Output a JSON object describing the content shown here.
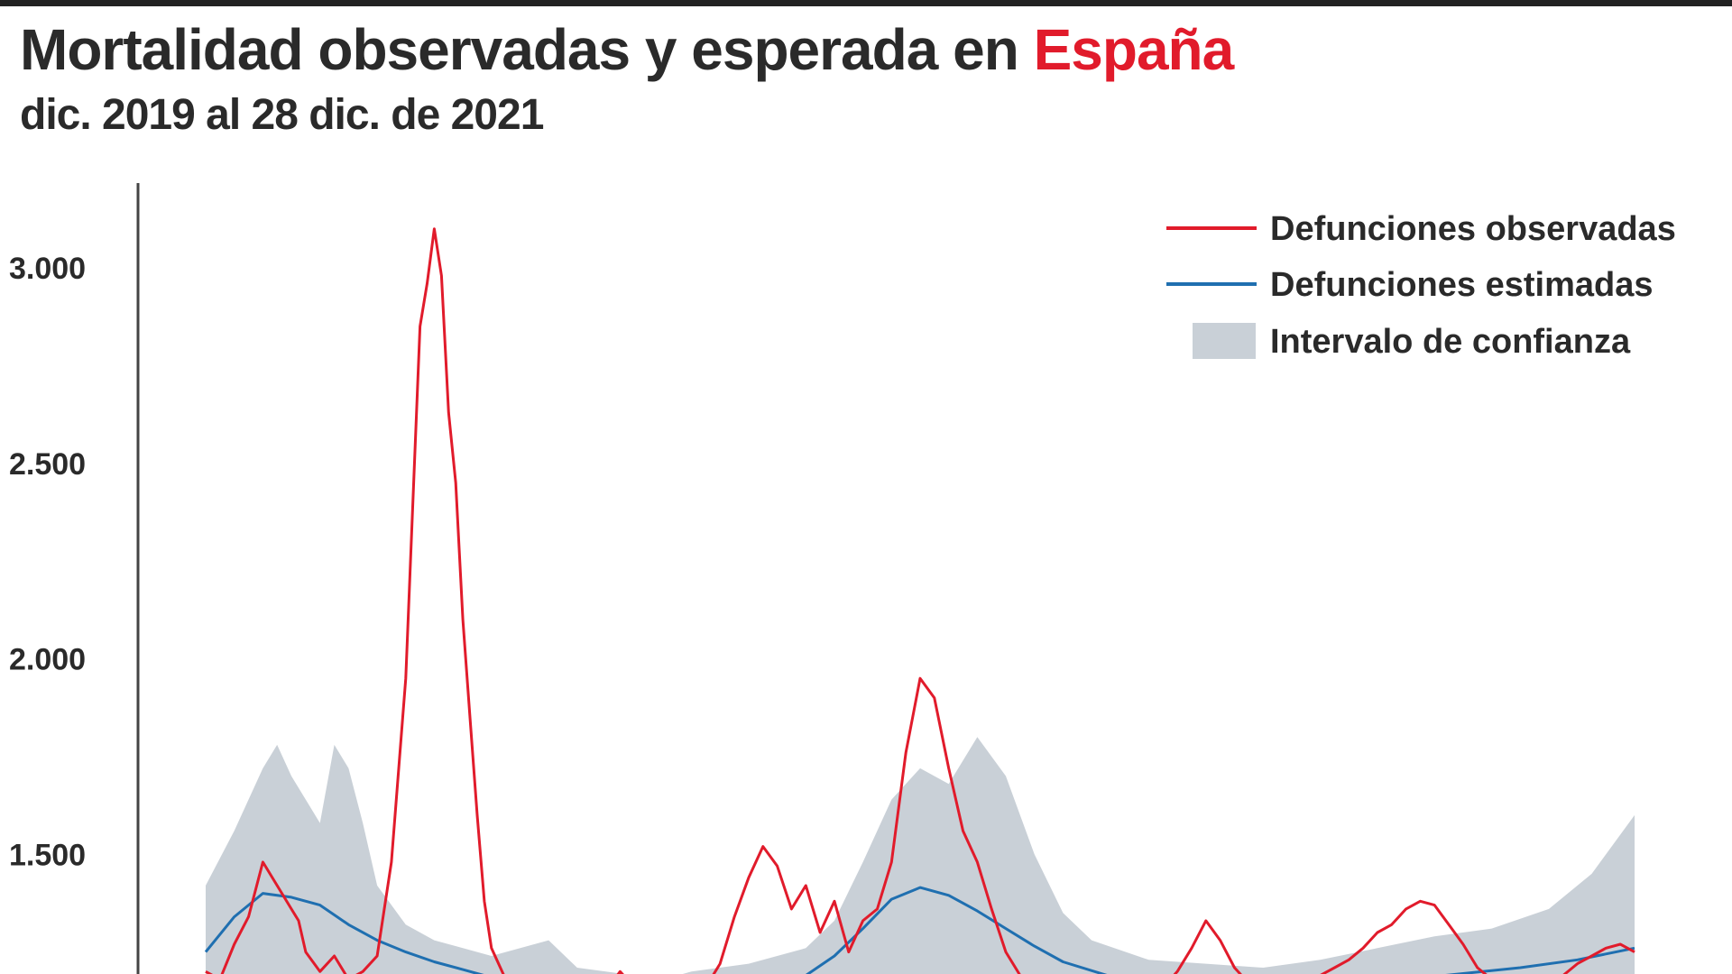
{
  "header": {
    "title_main": "Mortalidad observadas y esperada en ",
    "title_accent": "España",
    "subtitle": "dic. 2019 al 28 dic. de 2021"
  },
  "colors": {
    "observed": "#e11b2b",
    "estimated": "#1f6fb0",
    "confidence": "#c9d0d7",
    "axis": "#444444",
    "text": "#2a2a2a"
  },
  "chart_data": {
    "type": "line",
    "title": "Mortalidad observadas y esperada en España",
    "subtitle": "dic. 2019 al 28 dic. de 2021",
    "xlabel": "",
    "ylabel": "",
    "x_range": [
      "2019-12",
      "2021-12-28"
    ],
    "ylim_visible": [
      1250,
      3200
    ],
    "yticks": [
      {
        "value": 1500,
        "label": "1.500"
      },
      {
        "value": 2000,
        "label": "2.000"
      },
      {
        "value": 2500,
        "label": "2.500"
      },
      {
        "value": 3000,
        "label": "3.000"
      }
    ],
    "legend_position": "top-right",
    "legend": [
      {
        "label": "Defunciones observadas",
        "kind": "line",
        "series": "observed"
      },
      {
        "label": "Defunciones estimadas",
        "kind": "line",
        "series": "estimated"
      },
      {
        "label": "Intervalo de confianza",
        "kind": "band",
        "series": "confidence"
      }
    ],
    "series": [
      {
        "name": "Defunciones observadas",
        "key": "observed",
        "x": [
          0.0,
          0.01,
          0.02,
          0.03,
          0.04,
          0.05,
          0.06,
          0.065,
          0.07,
          0.08,
          0.09,
          0.1,
          0.11,
          0.12,
          0.13,
          0.14,
          0.15,
          0.155,
          0.16,
          0.165,
          0.17,
          0.175,
          0.18,
          0.185,
          0.19,
          0.195,
          0.2,
          0.21,
          0.22,
          0.23,
          0.24,
          0.25,
          0.26,
          0.27,
          0.28,
          0.29,
          0.3,
          0.31,
          0.32,
          0.33,
          0.34,
          0.35,
          0.36,
          0.37,
          0.38,
          0.39,
          0.4,
          0.41,
          0.42,
          0.43,
          0.44,
          0.45,
          0.46,
          0.47,
          0.48,
          0.49,
          0.5,
          0.51,
          0.52,
          0.53,
          0.54,
          0.55,
          0.56,
          0.57,
          0.58,
          0.59,
          0.6,
          0.61,
          0.62,
          0.63,
          0.64,
          0.65,
          0.66,
          0.67,
          0.68,
          0.69,
          0.7,
          0.71,
          0.72,
          0.73,
          0.74,
          0.75,
          0.76,
          0.77,
          0.78,
          0.79,
          0.8,
          0.81,
          0.82,
          0.83,
          0.84,
          0.85,
          0.86,
          0.87,
          0.88,
          0.89,
          0.9,
          0.91,
          0.92,
          0.93,
          0.94,
          0.95,
          0.96,
          0.97,
          0.98,
          0.99,
          1.0
        ],
        "values": [
          1200,
          1180,
          1270,
          1340,
          1480,
          1420,
          1360,
          1330,
          1250,
          1200,
          1240,
          1180,
          1200,
          1240,
          1480,
          1950,
          2850,
          2960,
          3100,
          2980,
          2630,
          2450,
          2100,
          1850,
          1600,
          1380,
          1260,
          1180,
          1150,
          1130,
          1140,
          1160,
          1150,
          1140,
          1150,
          1200,
          1160,
          1150,
          1150,
          1170,
          1190,
          1160,
          1220,
          1340,
          1440,
          1520,
          1470,
          1360,
          1420,
          1300,
          1380,
          1250,
          1330,
          1360,
          1480,
          1760,
          1950,
          1900,
          1720,
          1560,
          1480,
          1360,
          1250,
          1190,
          1150,
          1120,
          1130,
          1150,
          1140,
          1120,
          1130,
          1140,
          1150,
          1160,
          1200,
          1260,
          1330,
          1280,
          1210,
          1170,
          1160,
          1150,
          1150,
          1170,
          1190,
          1210,
          1230,
          1260,
          1300,
          1320,
          1360,
          1380,
          1370,
          1320,
          1270,
          1210,
          1180,
          1160,
          1150,
          1150,
          1170,
          1190,
          1220,
          1240,
          1260,
          1270,
          1250
        ]
      },
      {
        "name": "Defunciones estimadas",
        "key": "estimated",
        "x": [
          0.0,
          0.02,
          0.04,
          0.06,
          0.08,
          0.1,
          0.12,
          0.14,
          0.16,
          0.18,
          0.2,
          0.24,
          0.28,
          0.32,
          0.36,
          0.4,
          0.42,
          0.44,
          0.46,
          0.48,
          0.5,
          0.52,
          0.54,
          0.56,
          0.58,
          0.6,
          0.64,
          0.68,
          0.72,
          0.76,
          0.8,
          0.84,
          0.88,
          0.92,
          0.96,
          1.0
        ],
        "values": [
          1250,
          1340,
          1400,
          1390,
          1370,
          1320,
          1280,
          1250,
          1225,
          1205,
          1185,
          1165,
          1150,
          1145,
          1150,
          1165,
          1190,
          1240,
          1310,
          1385,
          1415,
          1395,
          1355,
          1310,
          1265,
          1225,
          1180,
          1155,
          1145,
          1150,
          1165,
          1180,
          1195,
          1210,
          1230,
          1260
        ]
      },
      {
        "name": "Intervalo de confianza",
        "key": "confidence",
        "x": [
          0.0,
          0.02,
          0.04,
          0.05,
          0.06,
          0.07,
          0.08,
          0.09,
          0.1,
          0.11,
          0.12,
          0.14,
          0.16,
          0.18,
          0.2,
          0.24,
          0.26,
          0.28,
          0.3,
          0.32,
          0.34,
          0.38,
          0.42,
          0.44,
          0.46,
          0.48,
          0.5,
          0.52,
          0.54,
          0.56,
          0.58,
          0.6,
          0.62,
          0.66,
          0.7,
          0.74,
          0.78,
          0.82,
          0.86,
          0.9,
          0.94,
          0.97,
          1.0
        ],
        "upper": [
          1420,
          1560,
          1720,
          1780,
          1700,
          1640,
          1580,
          1780,
          1720,
          1580,
          1420,
          1320,
          1280,
          1260,
          1240,
          1280,
          1210,
          1200,
          1190,
          1180,
          1200,
          1220,
          1260,
          1330,
          1480,
          1640,
          1720,
          1680,
          1800,
          1700,
          1500,
          1350,
          1280,
          1230,
          1220,
          1210,
          1230,
          1260,
          1290,
          1310,
          1360,
          1450,
          1600
        ],
        "lower": [
          1150,
          1150,
          1150,
          1150,
          1150,
          1150,
          1150,
          1150,
          1150,
          1150,
          1150,
          1150,
          1150,
          1150,
          1150,
          1150,
          1150,
          1150,
          1150,
          1150,
          1150,
          1150,
          1150,
          1150,
          1150,
          1150,
          1150,
          1150,
          1150,
          1150,
          1150,
          1150,
          1150,
          1150,
          1150,
          1150,
          1150,
          1150,
          1150,
          1150,
          1150,
          1150,
          1150
        ]
      }
    ]
  }
}
